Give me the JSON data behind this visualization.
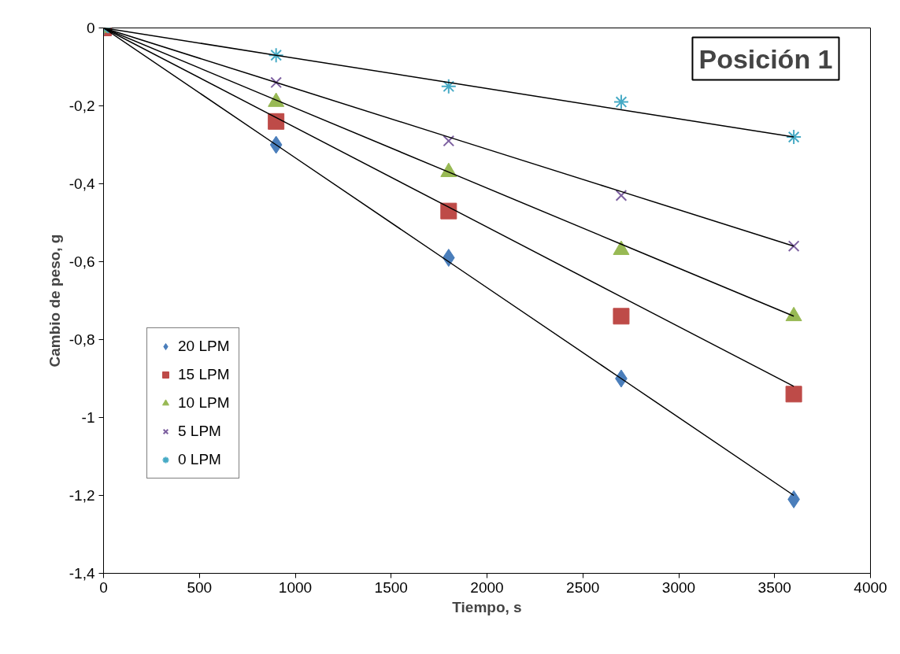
{
  "chart_data": {
    "type": "scatter",
    "xlabel": "Tiempo, s",
    "ylabel": "Cambio de peso, g",
    "annotations": [
      "Posición 1"
    ],
    "x": [
      0,
      900,
      1800,
      2700,
      3600
    ],
    "xlim": [
      0,
      4000
    ],
    "xticks": [
      0,
      500,
      1000,
      1500,
      2000,
      2500,
      3000,
      3500,
      4000
    ],
    "ylim": [
      -1.4,
      0
    ],
    "yticks": [
      {
        "value": -1.4,
        "label": "-1,4"
      },
      {
        "value": -1.2,
        "label": "-1,2"
      },
      {
        "value": -1,
        "label": "-1"
      },
      {
        "value": -0.8,
        "label": "-0,8"
      },
      {
        "value": -0.6,
        "label": "-0,6"
      },
      {
        "value": -0.4,
        "label": "-0,4"
      },
      {
        "value": -0.2,
        "label": "-0,2"
      },
      {
        "value": 0,
        "label": "0"
      }
    ],
    "grid": false,
    "legend": "left",
    "series": [
      {
        "name": "20 LPM",
        "color": "#4a7ebb",
        "marker": "diamond",
        "values": [
          null,
          -0.3,
          -0.59,
          -0.9,
          -1.21
        ]
      },
      {
        "name": "15 LPM",
        "color": "#be4b48",
        "marker": "square",
        "values": [
          0,
          -0.24,
          -0.47,
          -0.74,
          -0.94
        ]
      },
      {
        "name": "10 LPM",
        "color": "#98b954",
        "marker": "triangle",
        "values": [
          0,
          -0.19,
          -0.37,
          -0.57,
          -0.74
        ]
      },
      {
        "name": "5 LPM",
        "color": "#7d60a0",
        "marker": "cross",
        "values": [
          0,
          -0.14,
          -0.29,
          -0.43,
          -0.56
        ]
      },
      {
        "name": "0 LPM",
        "color": "#46aac5",
        "values": [
          0,
          -0.07,
          -0.15,
          -0.19,
          -0.28
        ]
      },
      {
        "type": "line",
        "color": "#000000",
        "values": [
          0,
          -0.3,
          -0.6,
          -0.9,
          -1.2
        ]
      },
      {
        "type": "line",
        "color": "#000000",
        "values": [
          0,
          -0.23,
          -0.46,
          -0.69,
          -0.92
        ]
      },
      {
        "type": "line",
        "color": "#000000",
        "values": [
          0,
          -0.185,
          -0.37,
          -0.555,
          -0.74
        ]
      },
      {
        "type": "line",
        "color": "#000000",
        "values": [
          0,
          -0.14,
          -0.28,
          -0.42,
          -0.56
        ]
      },
      {
        "type": "line",
        "color": "#000000",
        "values": [
          0,
          -0.07,
          -0.14,
          -0.21,
          -0.28
        ]
      }
    ]
  }
}
